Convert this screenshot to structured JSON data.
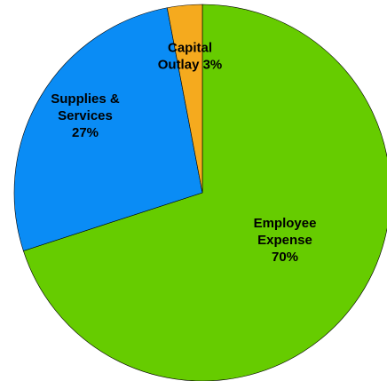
{
  "chart_data": {
    "type": "pie",
    "title": "",
    "start_angle_deg": 0,
    "direction": "clockwise",
    "slices": [
      {
        "name": "Employee Expense",
        "value": 70,
        "label_lines": [
          "Employee",
          "Expense",
          "70%"
        ],
        "color": "#66CC00"
      },
      {
        "name": "Supplies & Services",
        "value": 27,
        "label_lines": [
          "Supplies &",
          "Services",
          "27%"
        ],
        "color": "#0A8CF5"
      },
      {
        "name": "Capital Outlay",
        "value": 3,
        "label_lines": [
          "Capital",
          "Outlay 3%"
        ],
        "color": "#F5AA1E"
      }
    ]
  }
}
